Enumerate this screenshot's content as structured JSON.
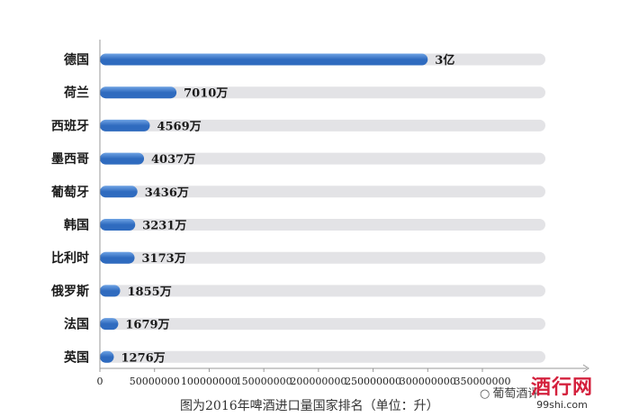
{
  "chart_data": {
    "type": "bar",
    "orientation": "horizontal",
    "categories": [
      "德国",
      "荷兰",
      "西班牙",
      "墨西哥",
      "葡萄牙",
      "韩国",
      "比利时",
      "俄罗斯",
      "法国",
      "英国"
    ],
    "values": [
      300000000,
      70100000,
      45690000,
      40370000,
      34360000,
      32310000,
      31730000,
      18550000,
      16790000,
      12760000
    ],
    "value_labels": [
      "3亿",
      "7010万",
      "4569万",
      "4037万",
      "3436万",
      "3231万",
      "3173万",
      "1855万",
      "1679万",
      "1276万"
    ],
    "x_ticks": [
      "0",
      "50000000",
      "100000000",
      "150000000",
      "200000000",
      "250000000",
      "300000000",
      "350000000"
    ],
    "xlim": [
      0,
      350000000
    ],
    "grid": false,
    "colors": {
      "bar": "#2f6bbf",
      "bar_light": "#6fa3e4",
      "track": "#e3e3e6"
    }
  },
  "caption": "图为2016年啤酒进口量国家排名（单位：升）",
  "watermark": {
    "icon": "wechat-icon",
    "text": "葡萄酒评"
  },
  "logo": {
    "main": "酒行网",
    "url": "99shi.com"
  }
}
